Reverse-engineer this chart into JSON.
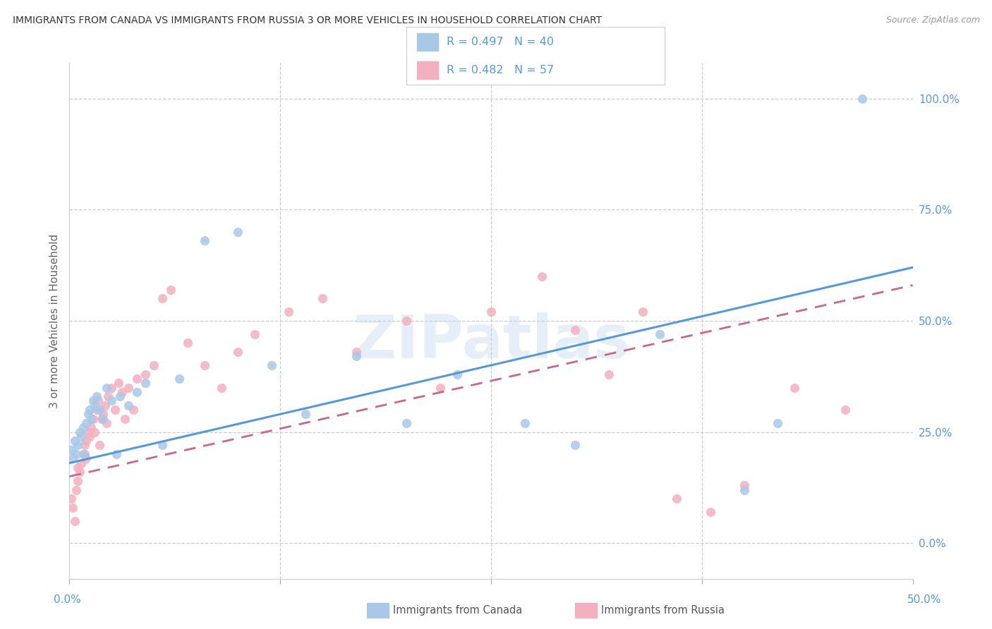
{
  "title": "IMMIGRANTS FROM CANADA VS IMMIGRANTS FROM RUSSIA 3 OR MORE VEHICLES IN HOUSEHOLD CORRELATION CHART",
  "source": "Source: ZipAtlas.com",
  "ylabel": "3 or more Vehicles in Household",
  "ytick_vals": [
    0,
    25,
    50,
    75,
    100
  ],
  "ytick_labels": [
    "0.0%",
    "25.0%",
    "50.0%",
    "75.0%",
    "100.0%"
  ],
  "xtick_labels": [
    "0.0%",
    "",
    "",
    "",
    "50.0%"
  ],
  "xlim": [
    0,
    50
  ],
  "ylim": [
    -8,
    108
  ],
  "canada_color": "#a8c8e8",
  "russia_color": "#f5b0c0",
  "canada_line_color": "#5599dd",
  "russia_line_color": "#cc6688",
  "russia_line_style": "--",
  "tick_label_color": "#5599dd",
  "legend_text_color": "#5599dd",
  "watermark": "ZIPatlas",
  "legend_R_canada": "R = 0.497",
  "legend_N_canada": "N = 40",
  "legend_R_russia": "R = 0.482",
  "legend_N_russia": "N = 57",
  "canada_scatter_x": [
    0.1,
    0.2,
    0.3,
    0.4,
    0.5,
    0.6,
    0.7,
    0.8,
    0.9,
    1.0,
    1.1,
    1.2,
    1.3,
    1.4,
    1.5,
    1.6,
    1.8,
    2.0,
    2.2,
    2.5,
    2.8,
    3.0,
    3.5,
    4.0,
    4.5,
    5.5,
    6.5,
    8.0,
    10.0,
    12.0,
    14.0,
    17.0,
    20.0,
    23.0,
    27.0,
    30.0,
    35.0,
    40.0,
    42.0,
    47.0
  ],
  "canada_scatter_y": [
    21,
    19,
    23,
    20,
    22,
    25,
    24,
    26,
    20,
    27,
    29,
    30,
    28,
    32,
    31,
    33,
    30,
    28,
    35,
    32,
    20,
    33,
    31,
    34,
    36,
    22,
    37,
    68,
    70,
    40,
    29,
    42,
    27,
    38,
    27,
    22,
    47,
    12,
    27,
    100
  ],
  "russia_scatter_x": [
    0.1,
    0.2,
    0.3,
    0.4,
    0.5,
    0.5,
    0.6,
    0.7,
    0.8,
    0.9,
    1.0,
    1.0,
    1.1,
    1.2,
    1.3,
    1.4,
    1.5,
    1.6,
    1.7,
    1.8,
    1.9,
    2.0,
    2.1,
    2.2,
    2.3,
    2.5,
    2.7,
    2.9,
    3.1,
    3.3,
    3.5,
    3.8,
    4.0,
    4.5,
    5.0,
    5.5,
    6.0,
    7.0,
    8.0,
    9.0,
    10.0,
    11.0,
    13.0,
    15.0,
    17.0,
    20.0,
    22.0,
    25.0,
    28.0,
    30.0,
    32.0,
    34.0,
    36.0,
    38.0,
    40.0,
    43.0,
    46.0
  ],
  "russia_scatter_y": [
    10,
    8,
    5,
    12,
    14,
    17,
    16,
    18,
    20,
    22,
    19,
    23,
    25,
    24,
    26,
    28,
    25,
    30,
    32,
    22,
    28,
    29,
    31,
    27,
    33,
    35,
    30,
    36,
    34,
    28,
    35,
    30,
    37,
    38,
    40,
    55,
    57,
    45,
    40,
    35,
    43,
    47,
    52,
    55,
    43,
    50,
    35,
    52,
    60,
    48,
    38,
    52,
    10,
    7,
    13,
    35,
    30
  ],
  "canada_line_x": [
    0,
    50
  ],
  "canada_line_y": [
    18,
    62
  ],
  "russia_line_x": [
    0,
    50
  ],
  "russia_line_y": [
    15,
    58
  ]
}
